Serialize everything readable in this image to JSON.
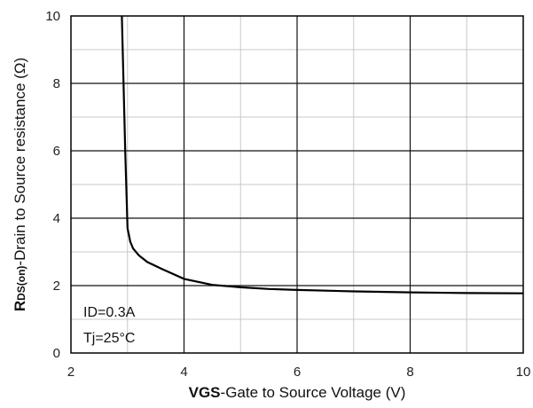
{
  "chart_data": {
    "type": "line",
    "xlabel_main": "VGS",
    "xlabel_rest": "-Gate to Source Voltage (V)",
    "ylabel_main": "R",
    "ylabel_sub": "DS(on)",
    "ylabel_rest": "-Drain to Source resistance (Ω)",
    "xlim": [
      2,
      10
    ],
    "ylim": [
      0,
      10
    ],
    "x_ticks": [
      2,
      4,
      6,
      8,
      10
    ],
    "y_ticks": [
      0,
      2,
      4,
      6,
      8,
      10
    ],
    "x_tick_labels": [
      "2",
      "4",
      "6",
      "8",
      "10"
    ],
    "y_tick_labels": [
      "0",
      "2",
      "4",
      "6",
      "8",
      "10"
    ],
    "grid": true,
    "annotations": [
      "ID=0.3A",
      "Tj=25°C"
    ],
    "series": [
      {
        "x": [
          2.9,
          2.93,
          2.96,
          3.0,
          3.05,
          3.1,
          3.2,
          3.35,
          3.6,
          4.0,
          4.5,
          5.0,
          5.5,
          6.0,
          7.0,
          8.0,
          9.0,
          10.0
        ],
        "y": [
          10.0,
          8.0,
          6.0,
          3.7,
          3.3,
          3.1,
          2.9,
          2.7,
          2.5,
          2.2,
          2.02,
          1.95,
          1.9,
          1.87,
          1.83,
          1.8,
          1.78,
          1.77
        ]
      }
    ]
  }
}
